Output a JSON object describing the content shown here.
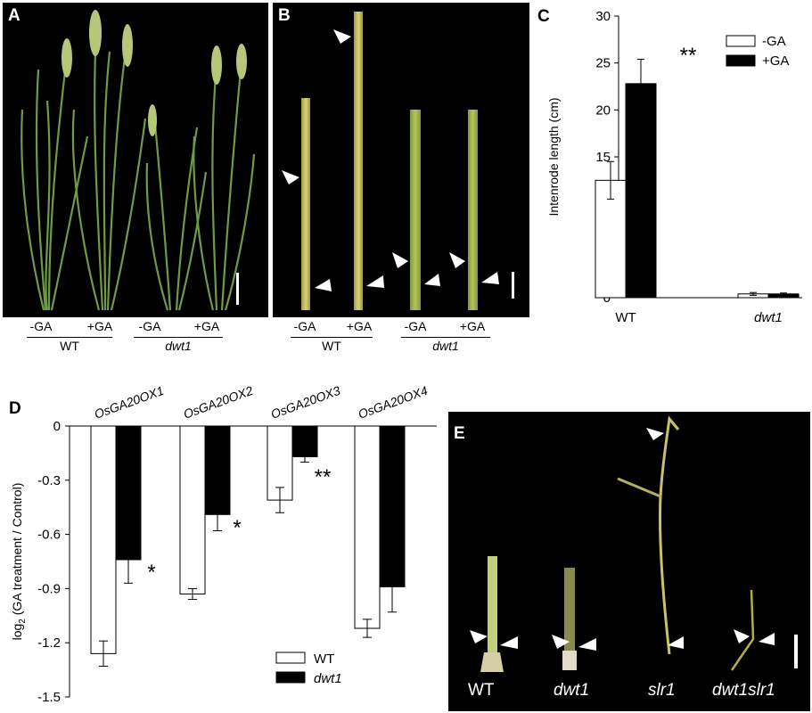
{
  "panelA": {
    "label": "A",
    "treatments": [
      "-GA",
      "+GA",
      "-GA",
      "+GA"
    ],
    "groups": [
      "WT",
      "dwt1"
    ]
  },
  "panelB": {
    "label": "B",
    "treatments": [
      "-GA",
      "+GA",
      "-GA",
      "+GA"
    ],
    "groups": [
      "WT",
      "dwt1"
    ]
  },
  "panelE": {
    "label": "E",
    "genotypes": [
      "WT",
      "dwt1",
      "slr1",
      "dwt1slr1"
    ]
  },
  "colors": {
    "filled": "#000000",
    "open": "#ffffff",
    "photo_bg": "#000000",
    "plant_green": "#6f9a48",
    "stem_yellow": "#c9c563"
  },
  "chart_data": [
    {
      "panel": "C",
      "type": "bar",
      "title": "",
      "xlabel": "",
      "ylabel": "Intenrode length (cm)",
      "categories": [
        "WT",
        "dwt1"
      ],
      "series": [
        {
          "name": "-GA",
          "values": [
            12.5,
            0.4
          ],
          "errors": [
            2.0,
            0.15
          ]
        },
        {
          "name": "+GA",
          "values": [
            22.8,
            0.4
          ],
          "errors": [
            2.6,
            0.1
          ]
        }
      ],
      "ylim": [
        0,
        30
      ],
      "yticks": [
        0,
        5,
        10,
        15,
        20,
        25,
        30
      ],
      "annotations": [
        {
          "category": "WT",
          "series": "+GA",
          "text": "**"
        }
      ],
      "legend": "top-right",
      "grid": false
    },
    {
      "panel": "D",
      "type": "bar",
      "title": "",
      "xlabel": "",
      "ylabel": "log2 (GA treatment / Control)",
      "ylabel_base": "log",
      "ylabel_sub": "2",
      "ylabel_rest": " (GA treatment / Control)",
      "categories": [
        "OsGA20OX1",
        "OsGA20OX2",
        "OsGA20OX3",
        "OsGA20OX4"
      ],
      "series": [
        {
          "name": "WT",
          "values": [
            -1.26,
            -0.93,
            -0.41,
            -1.12
          ],
          "errors": [
            0.07,
            0.03,
            0.07,
            0.05
          ]
        },
        {
          "name": "dwt1",
          "values": [
            -0.74,
            -0.49,
            -0.17,
            -0.89
          ],
          "errors": [
            0.13,
            0.09,
            0.03,
            0.14
          ]
        }
      ],
      "ylim": [
        -1.5,
        0
      ],
      "yticks": [
        0,
        -0.3,
        -0.6,
        -0.9,
        -1.2,
        -1.5
      ],
      "annotations": [
        {
          "category": "OsGA20OX1",
          "text": "*"
        },
        {
          "category": "OsGA20OX2",
          "text": "*"
        },
        {
          "category": "OsGA20OX3",
          "text": "**"
        }
      ],
      "legend": "bottom-right",
      "grid": false
    }
  ]
}
